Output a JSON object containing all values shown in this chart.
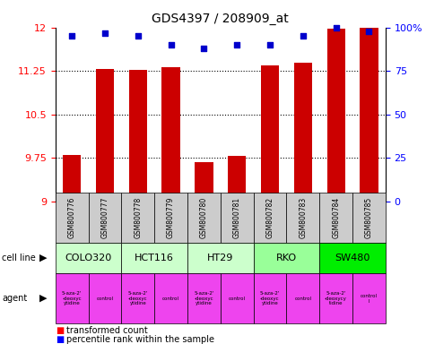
{
  "title": "GDS4397 / 208909_at",
  "samples": [
    "GSM800776",
    "GSM800777",
    "GSM800778",
    "GSM800779",
    "GSM800780",
    "GSM800781",
    "GSM800782",
    "GSM800783",
    "GSM800784",
    "GSM800785"
  ],
  "bar_values": [
    9.8,
    11.28,
    11.27,
    11.32,
    9.68,
    9.78,
    11.35,
    11.4,
    11.98,
    12.0
  ],
  "dot_values": [
    95,
    97,
    95,
    90,
    88,
    90,
    90,
    95,
    100,
    98
  ],
  "ylim_left": [
    9.0,
    12.0
  ],
  "ylim_right": [
    0,
    100
  ],
  "yticks_left": [
    9.0,
    9.75,
    10.5,
    11.25,
    12.0
  ],
  "yticks_right": [
    0,
    25,
    50,
    75,
    100
  ],
  "ytick_labels_left": [
    "9",
    "9.75",
    "10.5",
    "11.25",
    "12"
  ],
  "ytick_labels_right": [
    "0",
    "25",
    "50",
    "75",
    "100%"
  ],
  "bar_color": "#cc0000",
  "dot_color": "#0000cc",
  "cell_lines": [
    {
      "name": "COLO320",
      "start": 0,
      "end": 2,
      "color": "#ccffcc"
    },
    {
      "name": "HCT116",
      "start": 2,
      "end": 4,
      "color": "#ccffcc"
    },
    {
      "name": "HT29",
      "start": 4,
      "end": 6,
      "color": "#ccffcc"
    },
    {
      "name": "RKO",
      "start": 6,
      "end": 8,
      "color": "#99ff99"
    },
    {
      "name": "SW480",
      "start": 8,
      "end": 10,
      "color": "#00ee00"
    }
  ],
  "agents": [
    {
      "name": "5-aza-2'\n-deoxyc\nytidine",
      "start": 0,
      "end": 1,
      "color": "#ee44ee"
    },
    {
      "name": "control",
      "start": 1,
      "end": 2,
      "color": "#ee44ee"
    },
    {
      "name": "5-aza-2'\n-deoxyc\nytidine",
      "start": 2,
      "end": 3,
      "color": "#ee44ee"
    },
    {
      "name": "control",
      "start": 3,
      "end": 4,
      "color": "#ee44ee"
    },
    {
      "name": "5-aza-2'\n-deoxyc\nytidine",
      "start": 4,
      "end": 5,
      "color": "#ee44ee"
    },
    {
      "name": "control",
      "start": 5,
      "end": 6,
      "color": "#ee44ee"
    },
    {
      "name": "5-aza-2'\n-deoxyc\nytidine",
      "start": 6,
      "end": 7,
      "color": "#ee44ee"
    },
    {
      "name": "control",
      "start": 7,
      "end": 8,
      "color": "#ee44ee"
    },
    {
      "name": "5-aza-2'\n-deoxycy\ntidine",
      "start": 8,
      "end": 9,
      "color": "#ee44ee"
    },
    {
      "name": "control\nl",
      "start": 9,
      "end": 10,
      "color": "#ee44ee"
    }
  ],
  "legend_red": "transformed count",
  "legend_blue": "percentile rank within the sample",
  "sample_bg_color": "#cccccc",
  "fig_width": 4.75,
  "fig_height": 3.84,
  "dpi": 100
}
